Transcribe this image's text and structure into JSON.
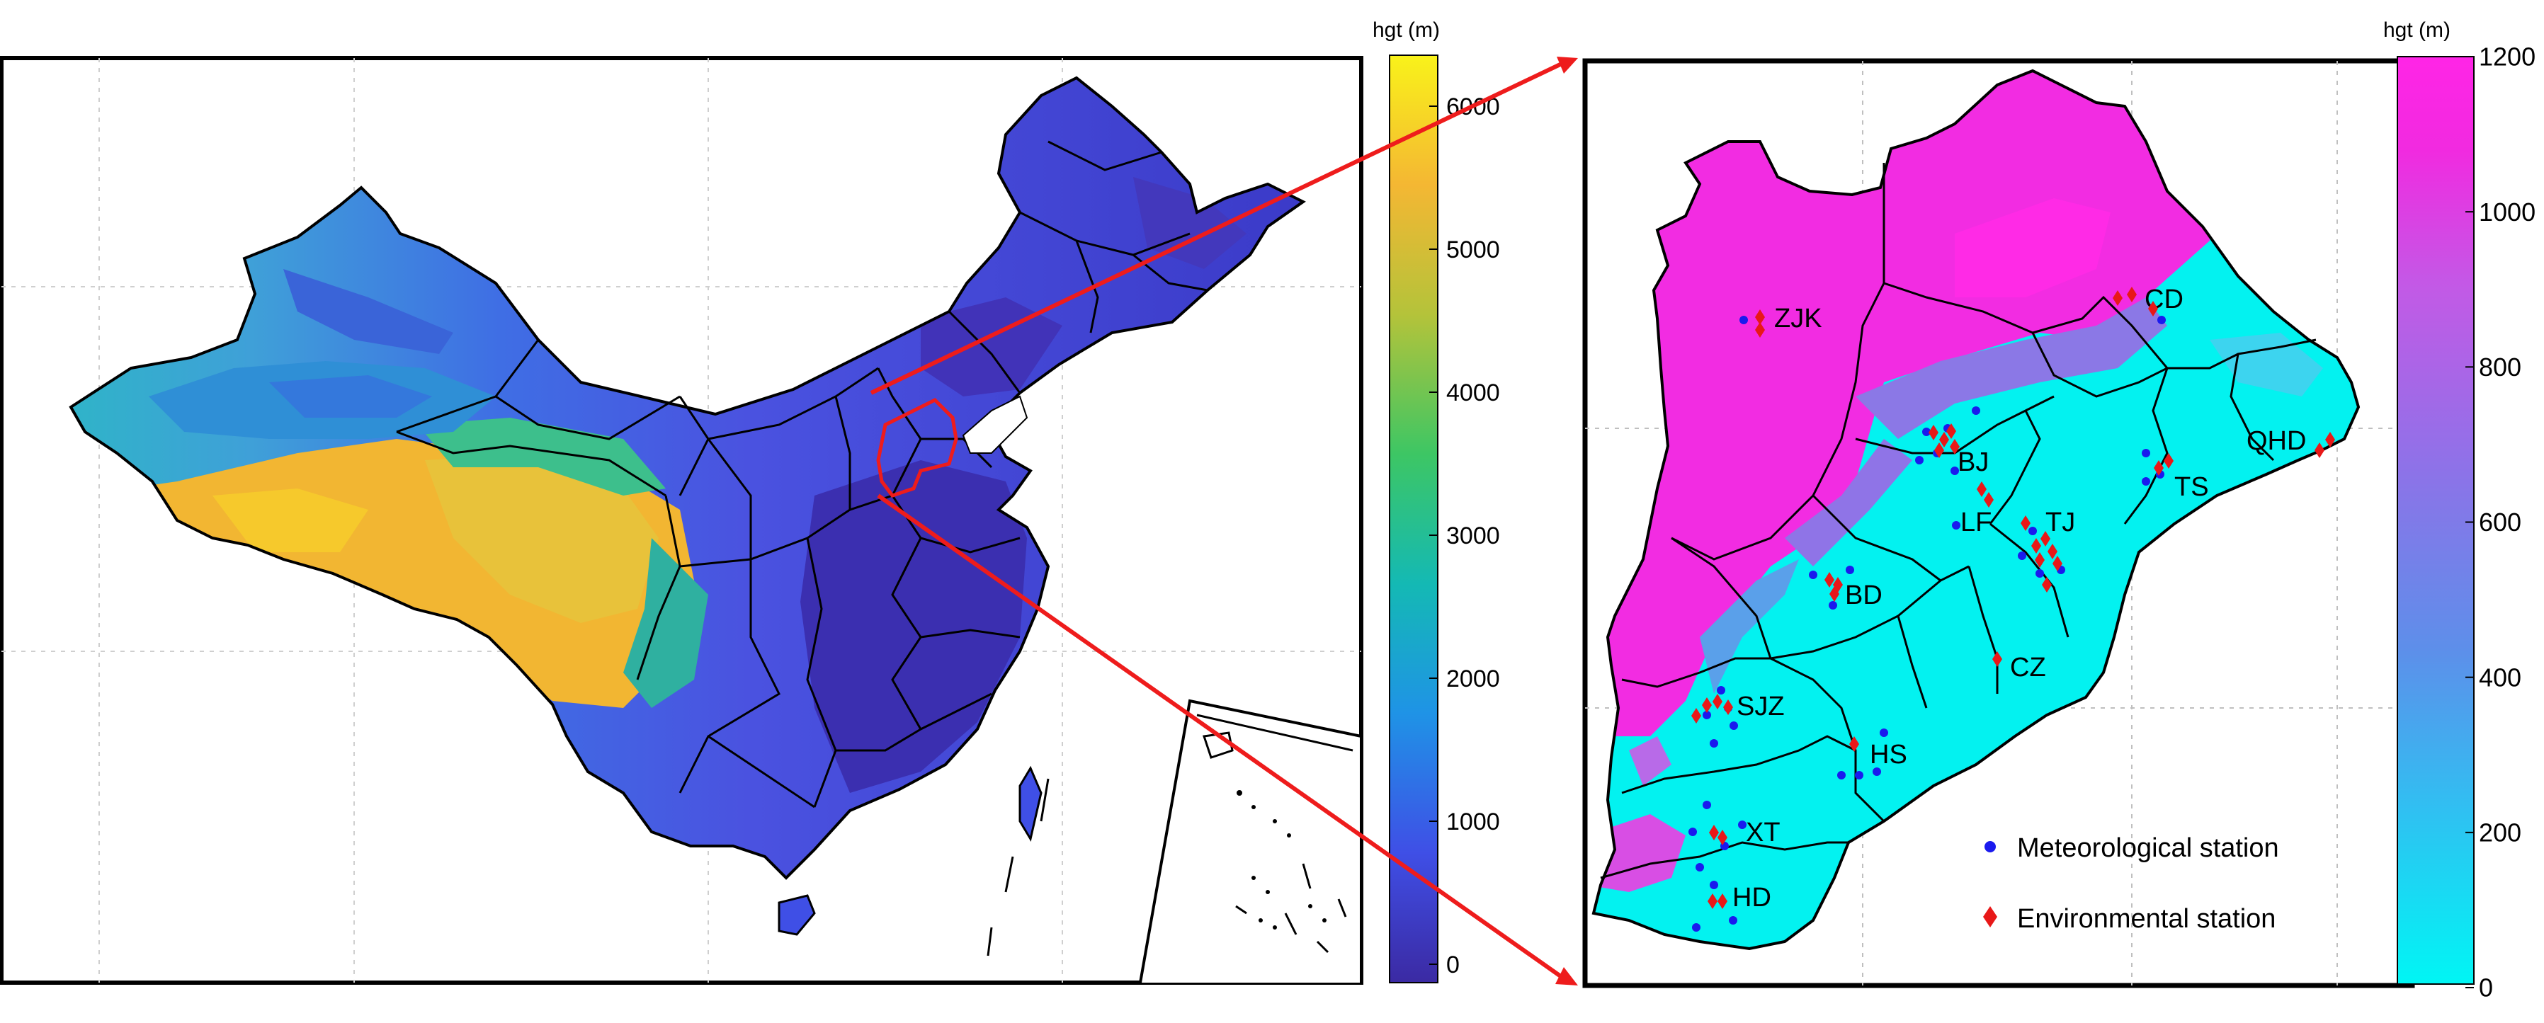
{
  "left_panel": {
    "colorbar": {
      "title": "hgt (m)",
      "ticks": [
        "0",
        "1000",
        "2000",
        "3000",
        "4000",
        "5000",
        "6000"
      ],
      "colors": [
        "#3b2aa3",
        "#3f4fe6",
        "#1f93e6",
        "#14b9b4",
        "#3dc664",
        "#b4c33a",
        "#f4b733",
        "#f9f21a"
      ]
    }
  },
  "right_panel": {
    "colorbar": {
      "title": "hgt (m)",
      "ticks": [
        "0",
        "200",
        "400",
        "600",
        "800",
        "1000",
        "1200"
      ],
      "colors": [
        "#00f6f4",
        "#2ec2f2",
        "#5d8fea",
        "#8c73e8",
        "#c25ae6",
        "#f12ae0",
        "#ff25e6"
      ]
    },
    "cities": [
      "ZJK",
      "CD",
      "QHD",
      "BJ",
      "TS",
      "LF",
      "TJ",
      "BD",
      "CZ",
      "SJZ",
      "HS",
      "XT",
      "HD"
    ],
    "legend": {
      "meteorological": "Meteorological station",
      "environmental": "Environmental station"
    }
  },
  "colors": {
    "meteorological": "#1a1aee",
    "environmental": "#e81818",
    "arrow": "#ee1c1c",
    "region_outline": "#ee1c1c"
  }
}
